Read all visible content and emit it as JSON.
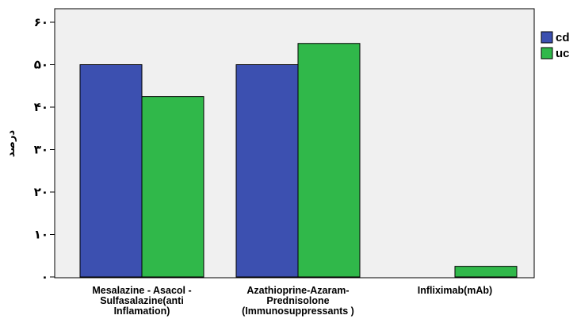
{
  "chart_data": {
    "type": "bar",
    "title": "",
    "xlabel": "",
    "ylabel": "درصد",
    "ylim": [
      0,
      60
    ],
    "grid": false,
    "legend_position": "top-right",
    "y_ticks": [
      {
        "value": 0,
        "label": "۰"
      },
      {
        "value": 10,
        "label": "۱۰"
      },
      {
        "value": 20,
        "label": "۲۰"
      },
      {
        "value": 30,
        "label": "۳۰"
      },
      {
        "value": 40,
        "label": "۴۰"
      },
      {
        "value": 50,
        "label": "۵۰"
      },
      {
        "value": 60,
        "label": "۶۰"
      }
    ],
    "categories": [
      [
        "Mesalazine - Asacol -",
        "Sulfasalazine(anti",
        "Inflamation)"
      ],
      [
        "Azathioprine-Azaram-",
        "Prednisolone",
        "(Immunosuppressants )"
      ],
      [
        "Infliximab(mAb)"
      ]
    ],
    "series": [
      {
        "name": "cd",
        "color": "#3c50b0",
        "values": [
          50,
          50,
          0
        ]
      },
      {
        "name": "uc",
        "color": "#30b84a",
        "values": [
          42.5,
          55,
          2.5
        ]
      }
    ],
    "plot_background": "#f0f0f0"
  }
}
